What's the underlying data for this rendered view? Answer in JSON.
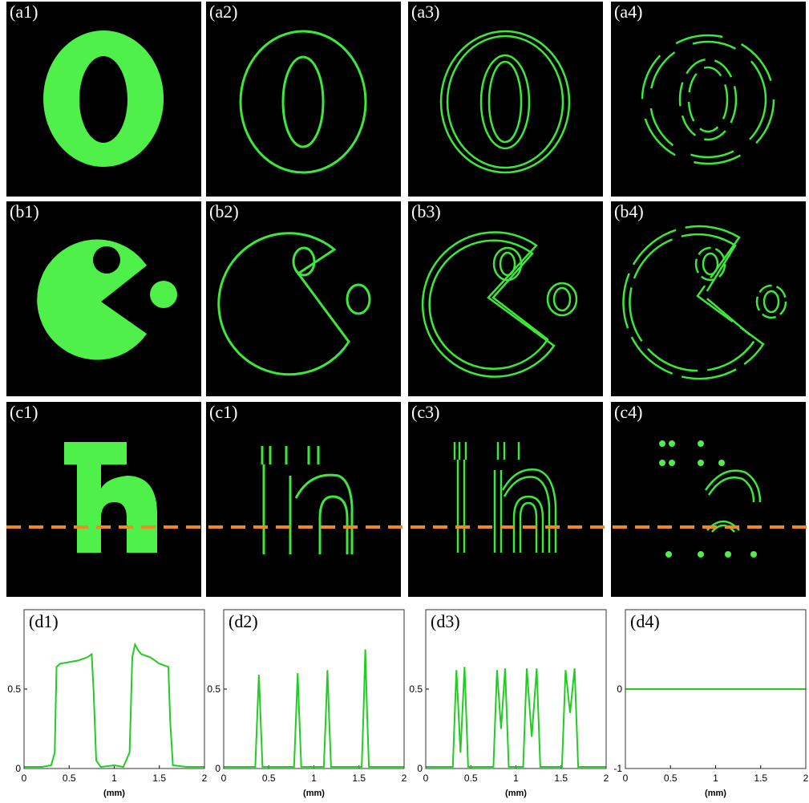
{
  "image_panels": [
    "(a1)",
    "(a2)",
    "(a3)",
    "(a4)",
    "(b1)",
    "(b2)",
    "(b3)",
    "(b4)",
    "(c1)",
    "(c1)",
    "(c3)",
    "(c4)"
  ],
  "chart_data": [
    {
      "type": "line",
      "title": "(d1)",
      "xlabel": "(mm)",
      "color": "#22cc22",
      "xlim": [
        0,
        2
      ],
      "xticks": [
        0,
        0.5,
        1,
        1.5,
        2
      ],
      "ylim": [
        0,
        1
      ],
      "yticks": [
        0,
        0.5
      ],
      "x": [
        0,
        0.2,
        0.3,
        0.34,
        0.36,
        0.4,
        0.5,
        0.6,
        0.7,
        0.75,
        0.77,
        0.8,
        0.85,
        1.0,
        1.1,
        1.17,
        1.2,
        1.23,
        1.27,
        1.3,
        1.4,
        1.5,
        1.6,
        1.62,
        1.65,
        1.8,
        2
      ],
      "values": [
        0.01,
        0.01,
        0.02,
        0.1,
        0.64,
        0.66,
        0.67,
        0.68,
        0.7,
        0.72,
        0.5,
        0.05,
        0.01,
        0.02,
        0.01,
        0.1,
        0.7,
        0.78,
        0.74,
        0.72,
        0.7,
        0.66,
        0.64,
        0.3,
        0.02,
        0.01,
        0.01
      ]
    },
    {
      "type": "line",
      "title": "(d2)",
      "xlabel": "(mm)",
      "color": "#22cc22",
      "xlim": [
        0,
        2
      ],
      "xticks": [
        0,
        0.5,
        1,
        1.5,
        2
      ],
      "ylim": [
        0,
        1
      ],
      "yticks": [
        0,
        0.5
      ],
      "x": [
        0,
        0.35,
        0.37,
        0.39,
        0.41,
        0.43,
        0.78,
        0.8,
        0.82,
        0.84,
        0.86,
        1.11,
        1.13,
        1.15,
        1.17,
        1.19,
        1.53,
        1.55,
        1.57,
        1.59,
        1.61,
        2
      ],
      "values": [
        0.01,
        0.01,
        0.3,
        0.59,
        0.3,
        0.01,
        0.01,
        0.3,
        0.6,
        0.3,
        0.01,
        0.01,
        0.3,
        0.62,
        0.3,
        0.01,
        0.01,
        0.35,
        0.75,
        0.35,
        0.01,
        0.01
      ]
    },
    {
      "type": "line",
      "title": "(d3)",
      "xlabel": "(mm)",
      "color": "#22cc22",
      "xlim": [
        0,
        2
      ],
      "xticks": [
        0,
        0.5,
        1,
        1.5,
        2
      ],
      "ylim": [
        0,
        1
      ],
      "yticks": [
        0,
        0.5
      ],
      "x": [
        0,
        0.3,
        0.34,
        0.385,
        0.43,
        0.47,
        0.75,
        0.79,
        0.835,
        0.88,
        0.92,
        1.08,
        1.12,
        1.175,
        1.23,
        1.27,
        1.51,
        1.55,
        1.6,
        1.65,
        1.69,
        2
      ],
      "values": [
        0.01,
        0.01,
        0.62,
        0.1,
        0.64,
        0.01,
        0.01,
        0.62,
        0.25,
        0.63,
        0.01,
        0.01,
        0.63,
        0.2,
        0.63,
        0.01,
        0.01,
        0.62,
        0.35,
        0.63,
        0.01,
        0.01
      ]
    },
    {
      "type": "line",
      "title": "(d4)",
      "xlabel": "(mm)",
      "color": "#22cc22",
      "xlim": [
        0,
        2
      ],
      "xticks": [
        0,
        0.5,
        1,
        1.5,
        2
      ],
      "ylim": [
        -1,
        1
      ],
      "yticks": [
        -1,
        0
      ],
      "x": [
        0,
        2
      ],
      "values": [
        0,
        0
      ]
    }
  ]
}
